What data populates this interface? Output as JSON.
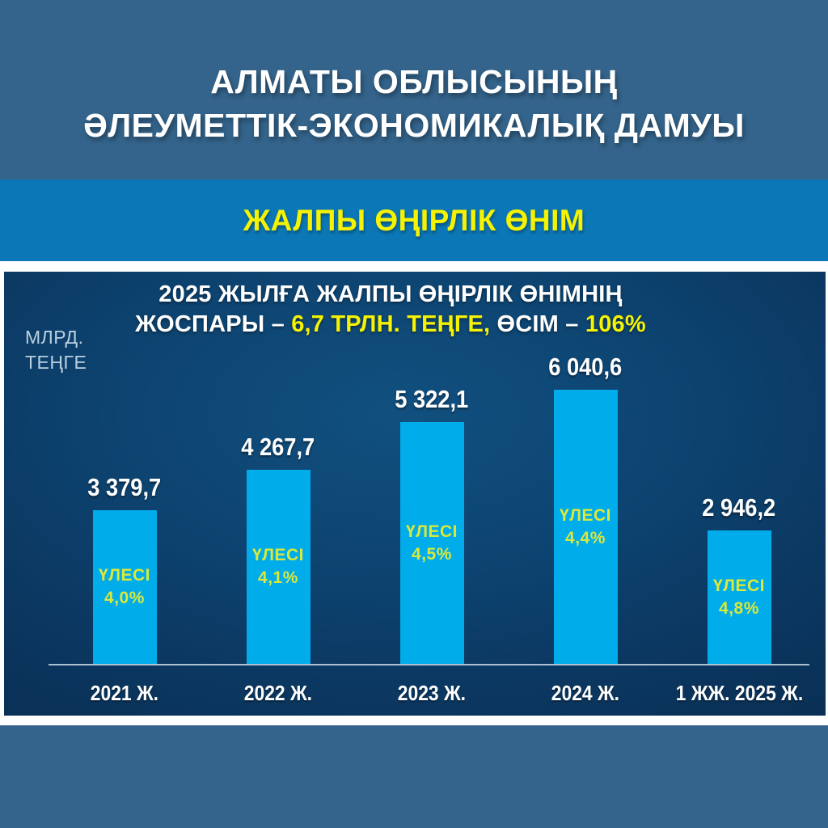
{
  "header": {
    "line1": "АЛМАТЫ ОБЛЫСЫНЫҢ",
    "line2": "ӘЛЕУМЕТТІК-ЭКОНОМИКАЛЫҚ ДАМУЫ"
  },
  "section": {
    "title": "ЖАЛПЫ ӨҢІРЛІК ӨНІМ"
  },
  "colors": {
    "background": "#34648B",
    "band_blue": "#0B77B6",
    "panel_navy": "#0D4370",
    "bar_blue": "#00ACEA",
    "title_yellow": "#F5F303",
    "share_yellow": "#D9E93B",
    "axis_line": "#C9D9E9",
    "unit_text": "#B9CFE0"
  },
  "chart_data": {
    "type": "bar",
    "title_line1": "2025 ЖЫЛҒА ЖАЛПЫ ӨҢІРЛІК ӨНІМНІҢ",
    "title_line2_parts": [
      {
        "text": "ЖОСПАРЫ – ",
        "color": "white"
      },
      {
        "text": "6,7 ТРЛН. ТЕҢГЕ,",
        "color": "yellow"
      },
      {
        "text": " ӨСІМ – ",
        "color": "white"
      },
      {
        "text": "106%",
        "color": "yellow"
      }
    ],
    "ylabel_line1": "МЛРД.",
    "ylabel_line2": "ТЕҢГЕ",
    "categories": [
      "2021 Ж.",
      "2022 Ж.",
      "2023 Ж.",
      "2024 Ж.",
      "1 ЖЖ. 2025 Ж."
    ],
    "values": [
      3379.7,
      4267.7,
      5322.1,
      6040.6,
      2946.2
    ],
    "value_labels": [
      "3 379,7",
      "4 267,7",
      "5 322,1",
      "6 040,6",
      "2 946,2"
    ],
    "share_label": "ҮЛЕСІ",
    "share_values": [
      "4,0%",
      "4,1%",
      "4,5%",
      "4,4%",
      "4,8%"
    ],
    "ylim": [
      0,
      6500
    ],
    "grid": false,
    "legend": false
  }
}
